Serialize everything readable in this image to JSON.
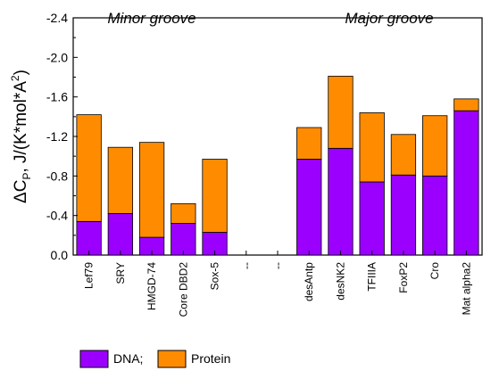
{
  "chart_data": {
    "type": "bar",
    "stacked": true,
    "categories": [
      "Lef79",
      "SRY",
      "HMGD-74",
      "Core DBD2",
      "Sox-5",
      "--",
      "--",
      "desAntp",
      "desNK2",
      "TFIIIA",
      "FoxP2",
      "Cro",
      "Mat alpha2"
    ],
    "series": [
      {
        "name": "DNA;",
        "color": "#9b00ff",
        "values": [
          -0.34,
          -0.42,
          -0.18,
          -0.32,
          -0.23,
          0,
          0,
          -0.97,
          -1.08,
          -0.74,
          -0.81,
          -0.8,
          -1.46
        ]
      },
      {
        "name": "Protein",
        "color": "#ff8c00",
        "values": [
          -1.08,
          -0.67,
          -0.96,
          -0.2,
          -0.74,
          0,
          0,
          -0.32,
          -0.73,
          -0.7,
          -0.41,
          -0.61,
          -0.12
        ]
      }
    ],
    "y_ticks": [
      "0.0",
      "-0.4",
      "-0.8",
      "-1.2",
      "-1.6",
      "-2.0",
      "-2.4"
    ],
    "y_tick_values": [
      0,
      -0.4,
      -0.8,
      -1.2,
      -1.6,
      -2.0,
      -2.4
    ],
    "ylim": [
      0,
      -2.4
    ],
    "y_inverted": true,
    "ylabel": {
      "part1": "ΔC",
      "sub": "P",
      "part2": ", J/(K*mol*A",
      "sup": "2",
      "part3": ")"
    },
    "xlabel": "",
    "grid": false,
    "legend_position": "bottom-left",
    "annotations": [
      "Minor groove",
      "Major groove"
    ]
  }
}
